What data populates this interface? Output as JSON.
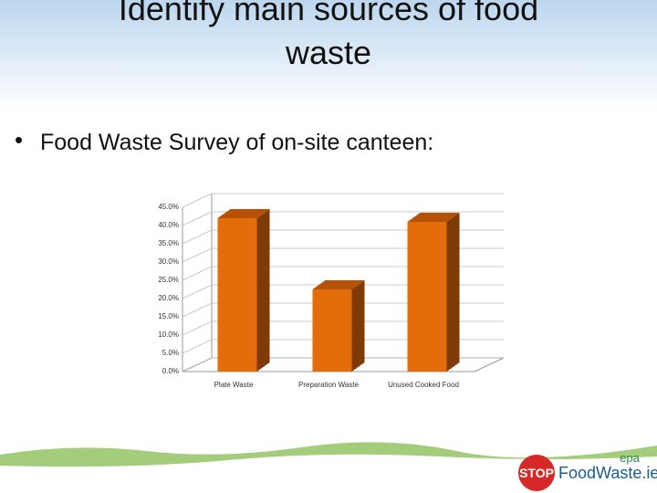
{
  "slide_title": "Identify main sources of food waste",
  "bullet": "Food Waste Survey of on-site canteen:",
  "logo": {
    "stop": "STOP",
    "site": "FoodWaste.ie",
    "epa": "epa"
  },
  "chart_data": {
    "type": "bar3d",
    "categories": [
      "Plate Waste",
      "Preparation Waste",
      "Unused Cooked Food"
    ],
    "values": [
      42,
      22.5,
      41
    ],
    "color": "#e46c0a",
    "side_color": "#7f3a06",
    "top_color": "#b55208",
    "ylim": [
      0,
      45
    ],
    "yticks": [
      {
        "value": 0,
        "label": "0.0%"
      },
      {
        "value": 5,
        "label": "5.0%"
      },
      {
        "value": 10,
        "label": "10.0%"
      },
      {
        "value": 15,
        "label": "15.0%"
      },
      {
        "value": 20,
        "label": "20.0%"
      },
      {
        "value": 25,
        "label": "25.0%"
      },
      {
        "value": 30,
        "label": "30.0%"
      },
      {
        "value": 35,
        "label": "35.0%"
      },
      {
        "value": 40,
        "label": "40.0%"
      },
      {
        "value": 45,
        "label": "45.0%"
      }
    ],
    "grid": true
  }
}
